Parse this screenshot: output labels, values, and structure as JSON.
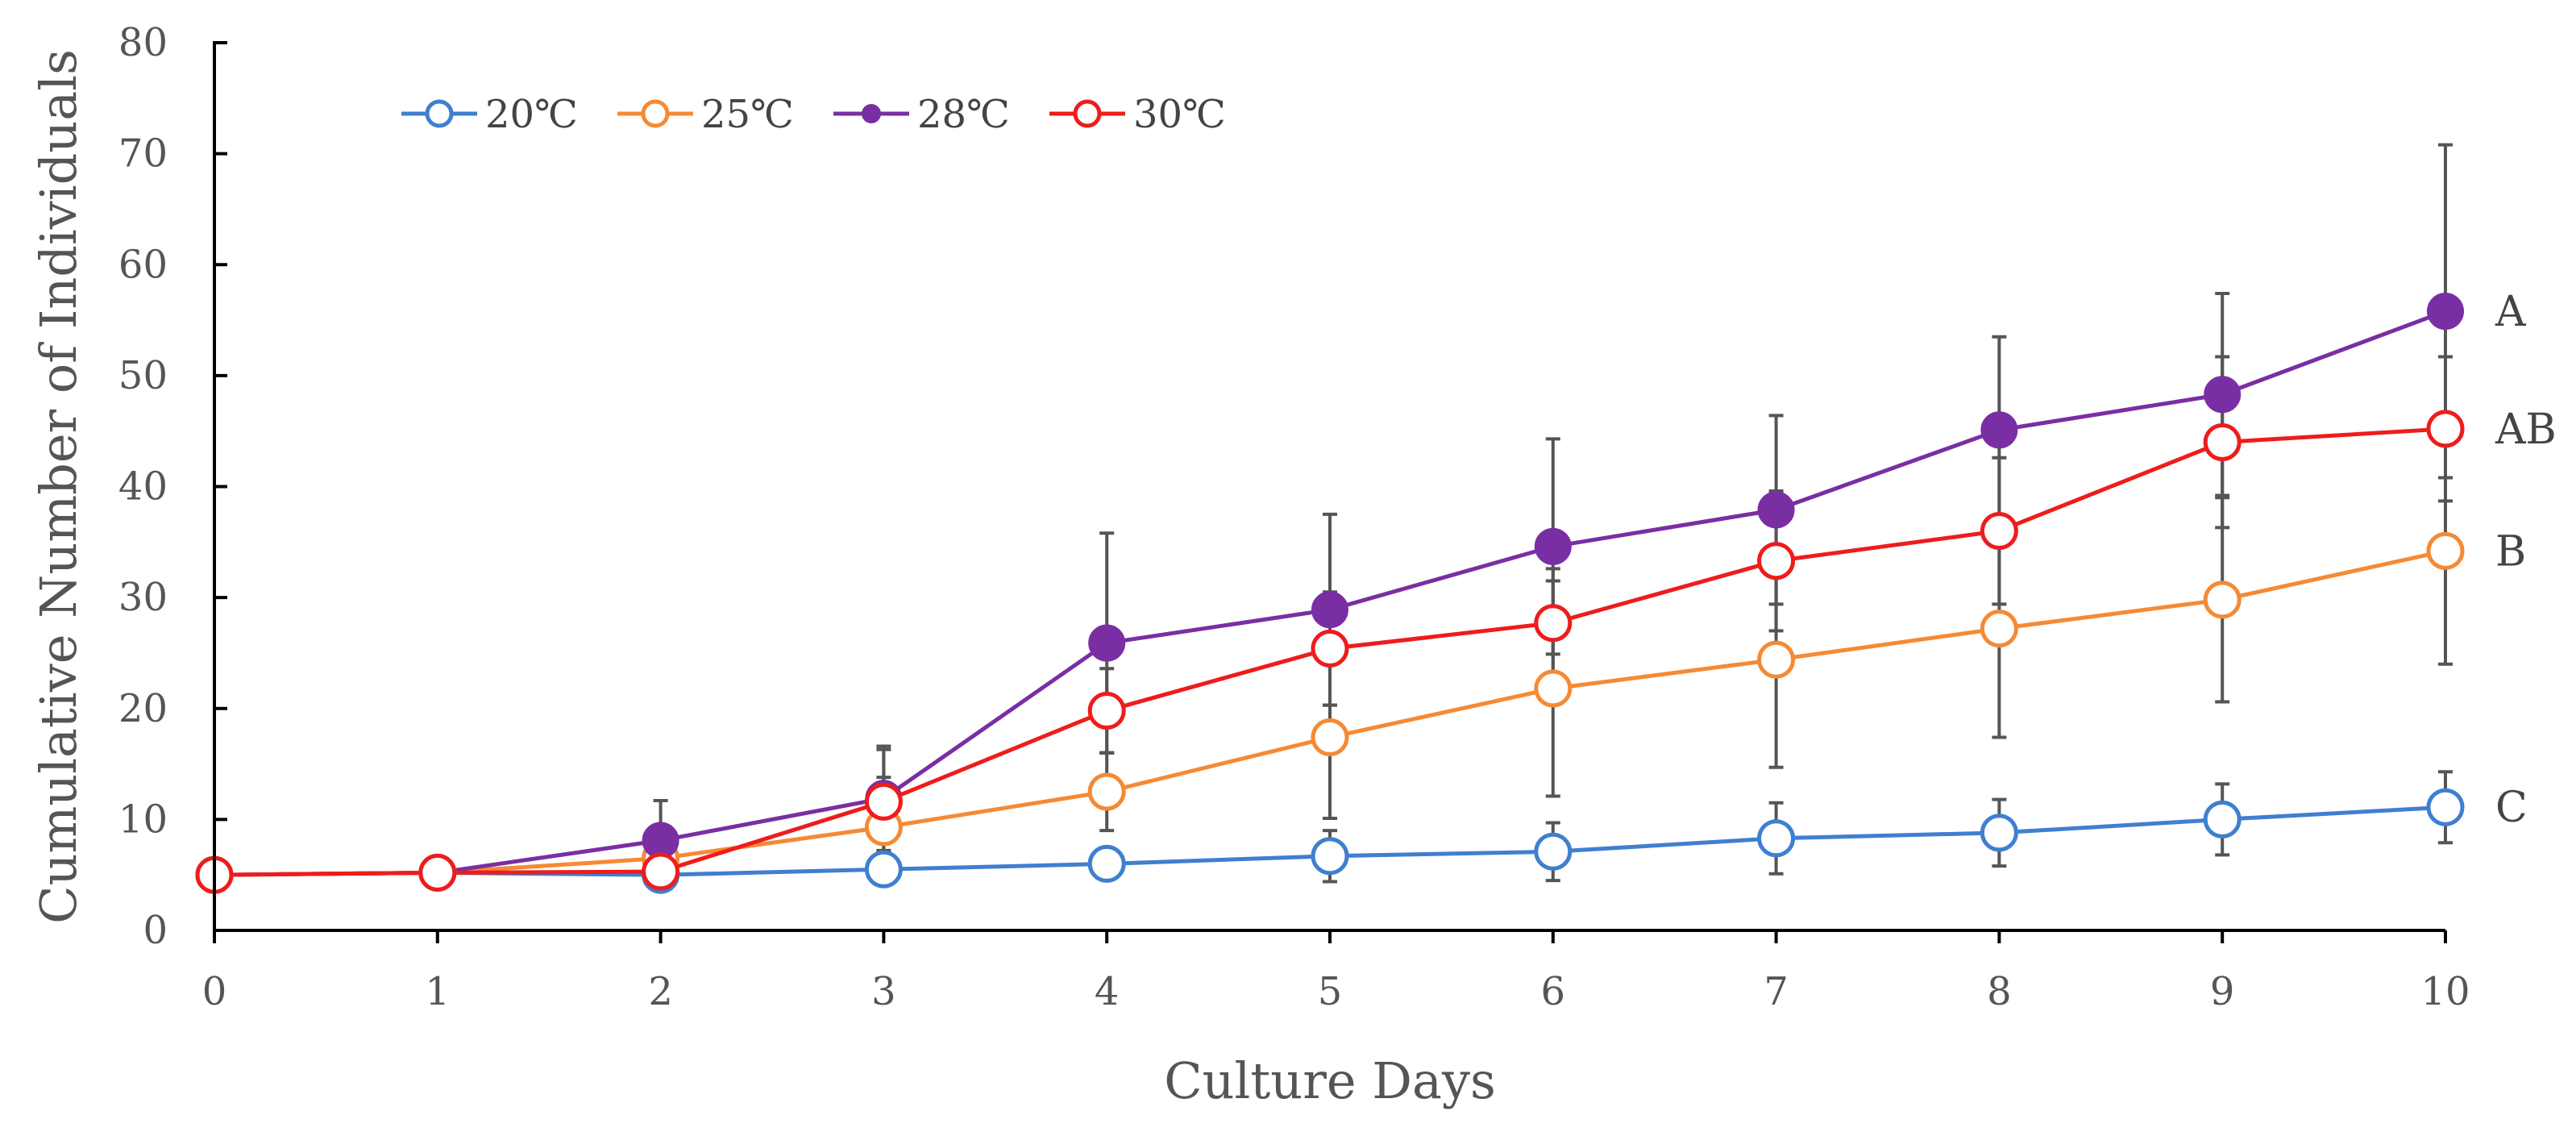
{
  "chart_data": {
    "type": "line",
    "title": "",
    "xlabel": "Culture Days",
    "ylabel": "Cumulative Number of Individuals",
    "x": [
      0,
      1,
      2,
      3,
      4,
      5,
      6,
      7,
      8,
      9,
      10
    ],
    "xlim": [
      0,
      10
    ],
    "ylim": [
      0,
      80
    ],
    "yticks": [
      0,
      10,
      20,
      30,
      40,
      50,
      60,
      70,
      80
    ],
    "grid": false,
    "legend_position": "top-left",
    "series": [
      {
        "name": "20℃",
        "color": "#3f7fcf",
        "marker": "open-circle",
        "values": [
          5,
          5.2,
          5,
          5.5,
          6,
          6.7,
          7.1,
          8.3,
          8.8,
          10,
          11.1
        ],
        "error": [
          0,
          0,
          0.6,
          0.6,
          1,
          2.3,
          2.6,
          3.2,
          3,
          3.2,
          3.2
        ],
        "group": "C"
      },
      {
        "name": "25℃",
        "color": "#f58a35",
        "marker": "open-circle",
        "values": [
          5,
          5.2,
          6.5,
          9.3,
          12.5,
          17.4,
          21.8,
          24.4,
          27.2,
          29.8,
          34.2
        ],
        "error": [
          0,
          0,
          0,
          4.5,
          3.5,
          7.3,
          9.7,
          9.7,
          9.8,
          9.2,
          10.2
        ],
        "group": "B"
      },
      {
        "name": "28℃",
        "color": "#7a2ea3",
        "marker": "filled-circle",
        "values": [
          5,
          5.2,
          8.1,
          11.9,
          25.9,
          28.9,
          34.6,
          37.9,
          45.1,
          48.3,
          55.8
        ],
        "error": [
          0,
          0,
          3.6,
          4.7,
          9.9,
          8.6,
          9.7,
          8.5,
          8.4,
          9.1,
          15
        ],
        "group": "A"
      },
      {
        "name": "30℃",
        "color": "#ee1c1c",
        "marker": "open-circle",
        "values": [
          5,
          5.2,
          5.3,
          11.6,
          19.8,
          25.4,
          27.7,
          33.3,
          36,
          44,
          45.2
        ],
        "error": [
          0,
          0,
          0,
          4.7,
          3.8,
          5.1,
          4.9,
          6.3,
          6.6,
          7.7,
          6.5
        ],
        "group": "AB"
      }
    ]
  }
}
